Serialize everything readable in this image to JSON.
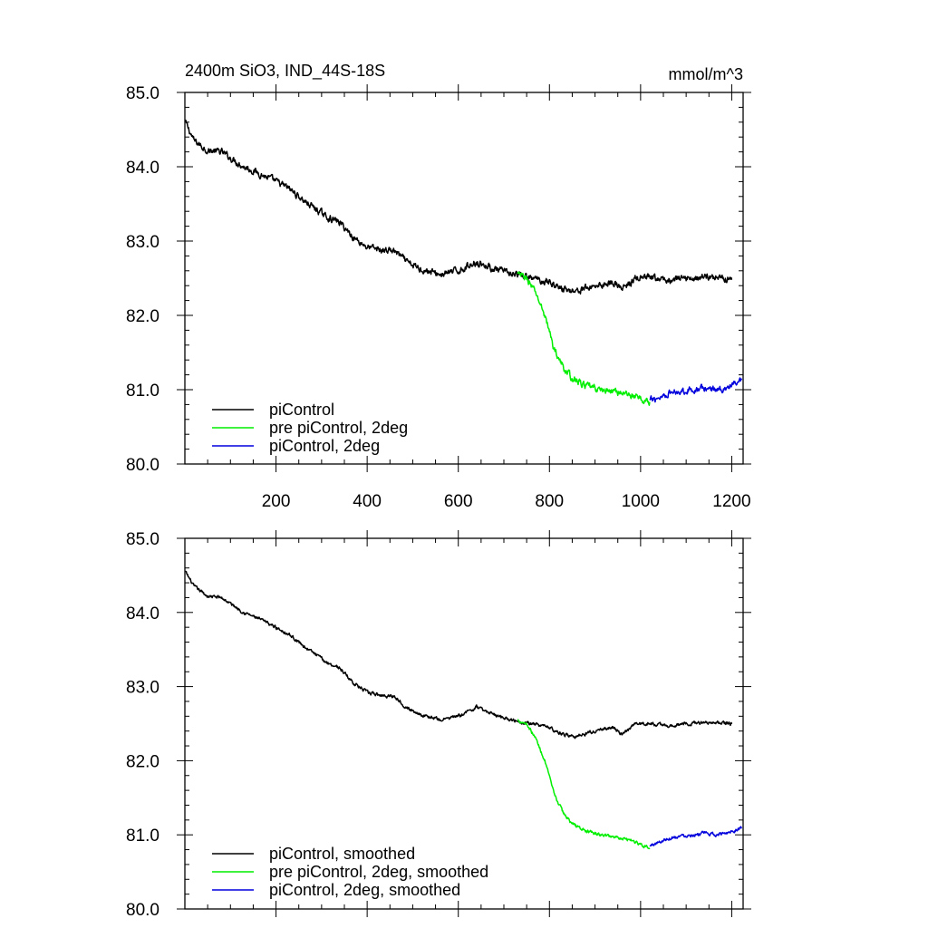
{
  "title_left": "2400m SiO3, IND_44S-18S",
  "title_right": "mmol/m^3",
  "chart_data": [
    {
      "type": "line",
      "xlim": [
        0,
        1225
      ],
      "ylim": [
        80.0,
        85.0
      ],
      "x_ticks": [
        200,
        400,
        600,
        800,
        1000,
        1200
      ],
      "x_tick_labels": [
        "200",
        "400",
        "600",
        "800",
        "1000",
        "1200"
      ],
      "y_ticks": [
        80.0,
        81.0,
        82.0,
        83.0,
        84.0,
        85.0
      ],
      "y_tick_labels": [
        "80.0",
        "81.0",
        "82.0",
        "83.0",
        "84.0",
        "85.0"
      ],
      "legend_position": "bottom-left",
      "noise": 0.07,
      "series": [
        {
          "name": "piControl",
          "color": "#000000",
          "points": [
            [
              1,
              84.6
            ],
            [
              20,
              84.35
            ],
            [
              50,
              84.22
            ],
            [
              80,
              84.2
            ],
            [
              100,
              84.12
            ],
            [
              130,
              84.0
            ],
            [
              160,
              83.92
            ],
            [
              200,
              83.8
            ],
            [
              230,
              83.7
            ],
            [
              260,
              83.55
            ],
            [
              290,
              83.42
            ],
            [
              310,
              83.33
            ],
            [
              340,
              83.25
            ],
            [
              370,
              83.05
            ],
            [
              400,
              82.92
            ],
            [
              430,
              82.88
            ],
            [
              460,
              82.87
            ],
            [
              490,
              82.7
            ],
            [
              520,
              82.62
            ],
            [
              560,
              82.55
            ],
            [
              600,
              82.6
            ],
            [
              640,
              82.72
            ],
            [
              680,
              82.62
            ],
            [
              720,
              82.55
            ],
            [
              760,
              82.5
            ],
            [
              800,
              82.45
            ],
            [
              830,
              82.35
            ],
            [
              860,
              82.33
            ],
            [
              900,
              82.4
            ],
            [
              940,
              82.45
            ],
            [
              960,
              82.35
            ],
            [
              990,
              82.5
            ],
            [
              1020,
              82.5
            ],
            [
              1060,
              82.47
            ],
            [
              1100,
              82.5
            ],
            [
              1150,
              82.52
            ],
            [
              1200,
              82.5
            ]
          ]
        },
        {
          "name": "pre piControl, 2deg",
          "color": "#00ee00",
          "points": [
            [
              730,
              82.55
            ],
            [
              750,
              82.5
            ],
            [
              770,
              82.3
            ],
            [
              790,
              82.0
            ],
            [
              810,
              81.55
            ],
            [
              830,
              81.3
            ],
            [
              850,
              81.15
            ],
            [
              880,
              81.05
            ],
            [
              910,
              81.0
            ],
            [
              950,
              80.97
            ],
            [
              980,
              80.93
            ],
            [
              1000,
              80.87
            ],
            [
              1020,
              80.83
            ]
          ]
        },
        {
          "name": "piControl, 2deg",
          "color": "#0000dd",
          "points": [
            [
              1020,
              80.85
            ],
            [
              1040,
              80.9
            ],
            [
              1060,
              80.95
            ],
            [
              1080,
              80.98
            ],
            [
              1110,
              81.0
            ],
            [
              1140,
              81.02
            ],
            [
              1170,
              81.0
            ],
            [
              1200,
              81.05
            ],
            [
              1222,
              81.1
            ]
          ]
        }
      ]
    },
    {
      "type": "line",
      "xlim": [
        0,
        1225
      ],
      "ylim": [
        80.0,
        85.0
      ],
      "x_ticks": [
        200,
        400,
        600,
        800,
        1000,
        1200
      ],
      "x_tick_labels": [],
      "y_ticks": [
        80.0,
        81.0,
        82.0,
        83.0,
        84.0,
        85.0
      ],
      "y_tick_labels": [
        "80.0",
        "81.0",
        "82.0",
        "83.0",
        "84.0",
        "85.0"
      ],
      "legend_position": "bottom-left",
      "noise": 0.035,
      "series": [
        {
          "name": "piControl, smoothed",
          "color": "#000000",
          "points": [
            [
              1,
              84.55
            ],
            [
              20,
              84.35
            ],
            [
              50,
              84.22
            ],
            [
              80,
              84.2
            ],
            [
              100,
              84.12
            ],
            [
              130,
              84.0
            ],
            [
              160,
              83.92
            ],
            [
              200,
              83.8
            ],
            [
              230,
              83.7
            ],
            [
              260,
              83.55
            ],
            [
              290,
              83.42
            ],
            [
              310,
              83.33
            ],
            [
              340,
              83.25
            ],
            [
              370,
              83.05
            ],
            [
              400,
              82.92
            ],
            [
              430,
              82.88
            ],
            [
              460,
              82.87
            ],
            [
              490,
              82.7
            ],
            [
              520,
              82.62
            ],
            [
              560,
              82.55
            ],
            [
              600,
              82.6
            ],
            [
              640,
              82.72
            ],
            [
              680,
              82.62
            ],
            [
              720,
              82.55
            ],
            [
              760,
              82.5
            ],
            [
              800,
              82.45
            ],
            [
              830,
              82.35
            ],
            [
              860,
              82.33
            ],
            [
              900,
              82.4
            ],
            [
              940,
              82.45
            ],
            [
              960,
              82.35
            ],
            [
              990,
              82.5
            ],
            [
              1020,
              82.5
            ],
            [
              1060,
              82.47
            ],
            [
              1100,
              82.5
            ],
            [
              1150,
              82.52
            ],
            [
              1200,
              82.5
            ]
          ]
        },
        {
          "name": "pre piControl, 2deg, smoothed",
          "color": "#00ee00",
          "points": [
            [
              730,
              82.55
            ],
            [
              750,
              82.5
            ],
            [
              770,
              82.3
            ],
            [
              790,
              82.0
            ],
            [
              810,
              81.55
            ],
            [
              830,
              81.3
            ],
            [
              850,
              81.15
            ],
            [
              880,
              81.05
            ],
            [
              910,
              81.0
            ],
            [
              950,
              80.97
            ],
            [
              980,
              80.93
            ],
            [
              1000,
              80.87
            ],
            [
              1020,
              80.83
            ]
          ]
        },
        {
          "name": "piControl, 2deg, smoothed",
          "color": "#0000dd",
          "points": [
            [
              1020,
              80.85
            ],
            [
              1040,
              80.9
            ],
            [
              1060,
              80.95
            ],
            [
              1080,
              80.98
            ],
            [
              1110,
              81.0
            ],
            [
              1140,
              81.02
            ],
            [
              1170,
              81.0
            ],
            [
              1200,
              81.05
            ],
            [
              1222,
              81.1
            ]
          ]
        }
      ]
    }
  ]
}
